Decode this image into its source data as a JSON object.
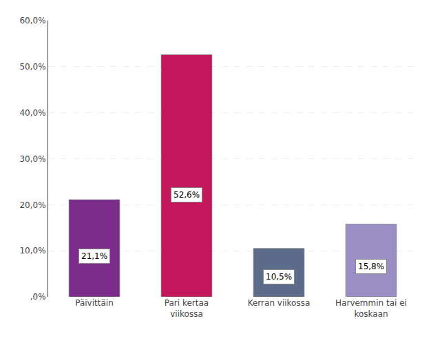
{
  "chart_data": {
    "type": "bar",
    "categories": [
      "Päivittäin",
      "Pari kertaa\nviikossa",
      "Kerran viikossa",
      "Harvemmin tai ei\nkoskaan"
    ],
    "values": [
      21.1,
      52.6,
      10.5,
      15.8
    ],
    "value_labels": [
      "21,1%",
      "52,6%",
      "10,5%",
      "15,8%"
    ],
    "colors": [
      "#7B2D8B",
      "#C2185B",
      "#5C6B8A",
      "#9B8EC4"
    ],
    "ylim": [
      0,
      60
    ],
    "yticks": [
      {
        "value": 0,
        "label": ",0%"
      },
      {
        "value": 10,
        "label": "10,0%"
      },
      {
        "value": 20,
        "label": "20,0%"
      },
      {
        "value": 30,
        "label": "30,0%"
      },
      {
        "value": 40,
        "label": "40,0%"
      },
      {
        "value": 50,
        "label": "50,0%"
      },
      {
        "value": 60,
        "label": "60,0%"
      }
    ],
    "grid": true,
    "data_labels": true
  }
}
